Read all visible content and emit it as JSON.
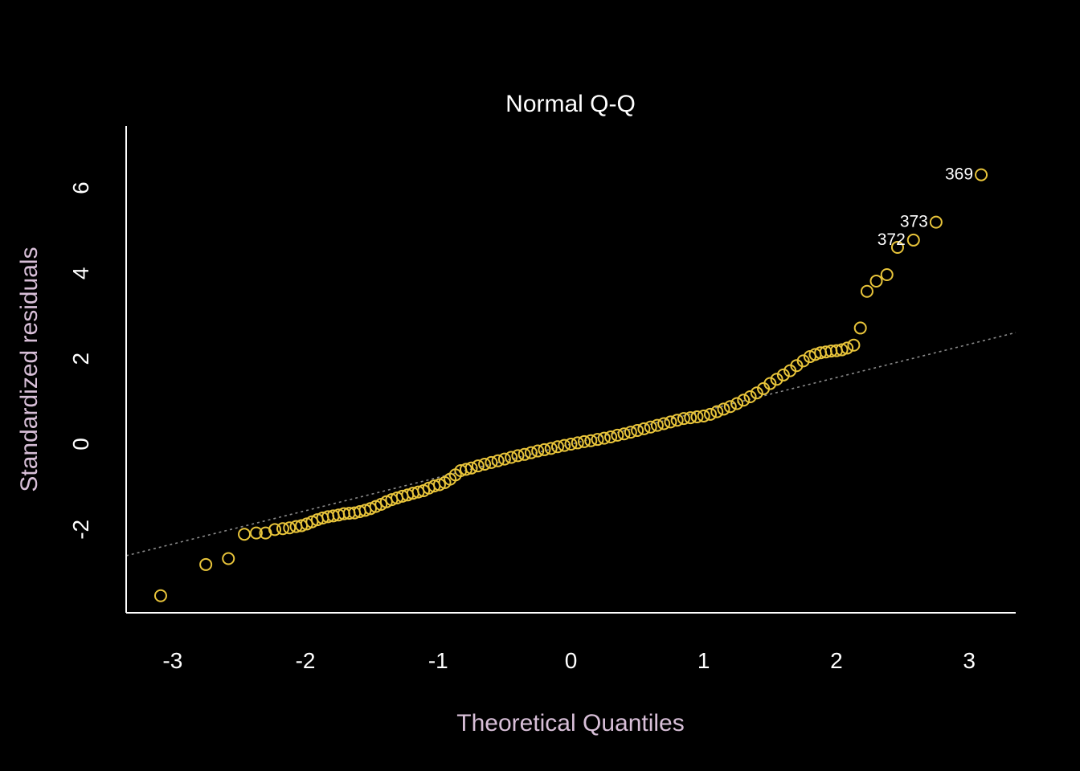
{
  "chart_data": {
    "type": "scatter",
    "title": "Normal Q-Q",
    "xlabel": "Theoretical Quantiles",
    "ylabel": "Standardized residuals",
    "xlim": [
      -3.35,
      3.35
    ],
    "ylim": [
      -3.95,
      7.45
    ],
    "x_ticks": [
      -3,
      -2,
      -1,
      0,
      1,
      2,
      3
    ],
    "x_tick_labels": [
      "-3",
      "-2",
      "-1",
      "0",
      "1",
      "2",
      "3"
    ],
    "y_ticks": [
      -2,
      0,
      2,
      4,
      6
    ],
    "y_tick_labels": [
      "-2",
      "0",
      "2",
      "4",
      "6"
    ],
    "grid": false,
    "colors": {
      "background": "#000000",
      "points": "#e8c43a",
      "reference_line": "#8a8a8a",
      "axis": "#ffffff",
      "title": "#ffffff",
      "axis_title": "#d8bfd8"
    },
    "reference_line": {
      "intercept": 0.0,
      "slope": 0.78
    },
    "series": [
      {
        "points": [
          [
            -3.09,
            -3.55
          ],
          [
            -2.75,
            -2.82
          ],
          [
            -2.58,
            -2.68
          ],
          [
            -2.46,
            -2.11
          ],
          [
            -2.37,
            -2.08
          ],
          [
            -2.3,
            -2.08
          ],
          [
            -2.23,
            -2.0
          ],
          [
            -2.17,
            -1.98
          ],
          [
            -2.12,
            -1.96
          ],
          [
            -2.07,
            -1.93
          ],
          [
            -2.03,
            -1.91
          ],
          [
            -1.99,
            -1.87
          ],
          [
            -1.95,
            -1.82
          ],
          [
            -1.91,
            -1.77
          ],
          [
            -1.87,
            -1.73
          ],
          [
            -1.83,
            -1.7
          ],
          [
            -1.79,
            -1.68
          ],
          [
            -1.75,
            -1.66
          ],
          [
            -1.71,
            -1.63
          ],
          [
            -1.67,
            -1.62
          ],
          [
            -1.63,
            -1.61
          ],
          [
            -1.59,
            -1.58
          ],
          [
            -1.55,
            -1.55
          ],
          [
            -1.51,
            -1.51
          ],
          [
            -1.47,
            -1.46
          ],
          [
            -1.43,
            -1.41
          ],
          [
            -1.39,
            -1.35
          ],
          [
            -1.35,
            -1.3
          ],
          [
            -1.31,
            -1.26
          ],
          [
            -1.27,
            -1.22
          ],
          [
            -1.23,
            -1.19
          ],
          [
            -1.19,
            -1.15
          ],
          [
            -1.15,
            -1.12
          ],
          [
            -1.11,
            -1.09
          ],
          [
            -1.07,
            -1.03
          ],
          [
            -1.03,
            -0.98
          ],
          [
            -0.99,
            -0.95
          ],
          [
            -0.95,
            -0.9
          ],
          [
            -0.91,
            -0.82
          ],
          [
            -0.87,
            -0.72
          ],
          [
            -0.83,
            -0.62
          ],
          [
            -0.79,
            -0.59
          ],
          [
            -0.75,
            -0.56
          ],
          [
            -0.7,
            -0.51
          ],
          [
            -0.65,
            -0.47
          ],
          [
            -0.6,
            -0.43
          ],
          [
            -0.55,
            -0.39
          ],
          [
            -0.5,
            -0.35
          ],
          [
            -0.45,
            -0.31
          ],
          [
            -0.4,
            -0.27
          ],
          [
            -0.35,
            -0.24
          ],
          [
            -0.3,
            -0.2
          ],
          [
            -0.25,
            -0.16
          ],
          [
            -0.2,
            -0.13
          ],
          [
            -0.15,
            -0.1
          ],
          [
            -0.1,
            -0.06
          ],
          [
            -0.05,
            -0.03
          ],
          [
            0.0,
            0.0
          ],
          [
            0.05,
            0.03
          ],
          [
            0.1,
            0.06
          ],
          [
            0.15,
            0.08
          ],
          [
            0.2,
            0.11
          ],
          [
            0.25,
            0.14
          ],
          [
            0.3,
            0.17
          ],
          [
            0.35,
            0.21
          ],
          [
            0.4,
            0.24
          ],
          [
            0.45,
            0.28
          ],
          [
            0.5,
            0.32
          ],
          [
            0.55,
            0.36
          ],
          [
            0.6,
            0.4
          ],
          [
            0.65,
            0.44
          ],
          [
            0.7,
            0.48
          ],
          [
            0.75,
            0.52
          ],
          [
            0.8,
            0.56
          ],
          [
            0.85,
            0.6
          ],
          [
            0.9,
            0.62
          ],
          [
            0.95,
            0.64
          ],
          [
            1.0,
            0.66
          ],
          [
            1.05,
            0.7
          ],
          [
            1.1,
            0.76
          ],
          [
            1.15,
            0.82
          ],
          [
            1.2,
            0.88
          ],
          [
            1.25,
            0.95
          ],
          [
            1.3,
            1.03
          ],
          [
            1.35,
            1.11
          ],
          [
            1.4,
            1.2
          ],
          [
            1.45,
            1.3
          ],
          [
            1.5,
            1.42
          ],
          [
            1.55,
            1.52
          ],
          [
            1.6,
            1.62
          ],
          [
            1.65,
            1.72
          ],
          [
            1.7,
            1.84
          ],
          [
            1.75,
            1.95
          ],
          [
            1.8,
            2.05
          ],
          [
            1.84,
            2.1
          ],
          [
            1.88,
            2.14
          ],
          [
            1.92,
            2.16
          ],
          [
            1.96,
            2.18
          ],
          [
            2.0,
            2.19
          ],
          [
            2.04,
            2.21
          ],
          [
            2.08,
            2.25
          ],
          [
            2.13,
            2.32
          ],
          [
            2.18,
            2.72
          ],
          [
            2.23,
            3.58
          ],
          [
            2.3,
            3.82
          ],
          [
            2.38,
            3.97
          ],
          [
            2.46,
            4.61
          ],
          [
            2.58,
            4.78
          ],
          [
            2.75,
            5.2
          ],
          [
            3.09,
            6.31
          ]
        ]
      }
    ],
    "labeled_points": [
      {
        "label": "369",
        "x": 3.09,
        "y": 6.31
      },
      {
        "label": "373",
        "x": 2.75,
        "y": 5.2
      },
      {
        "label": "372",
        "x": 2.58,
        "y": 4.78
      }
    ]
  }
}
